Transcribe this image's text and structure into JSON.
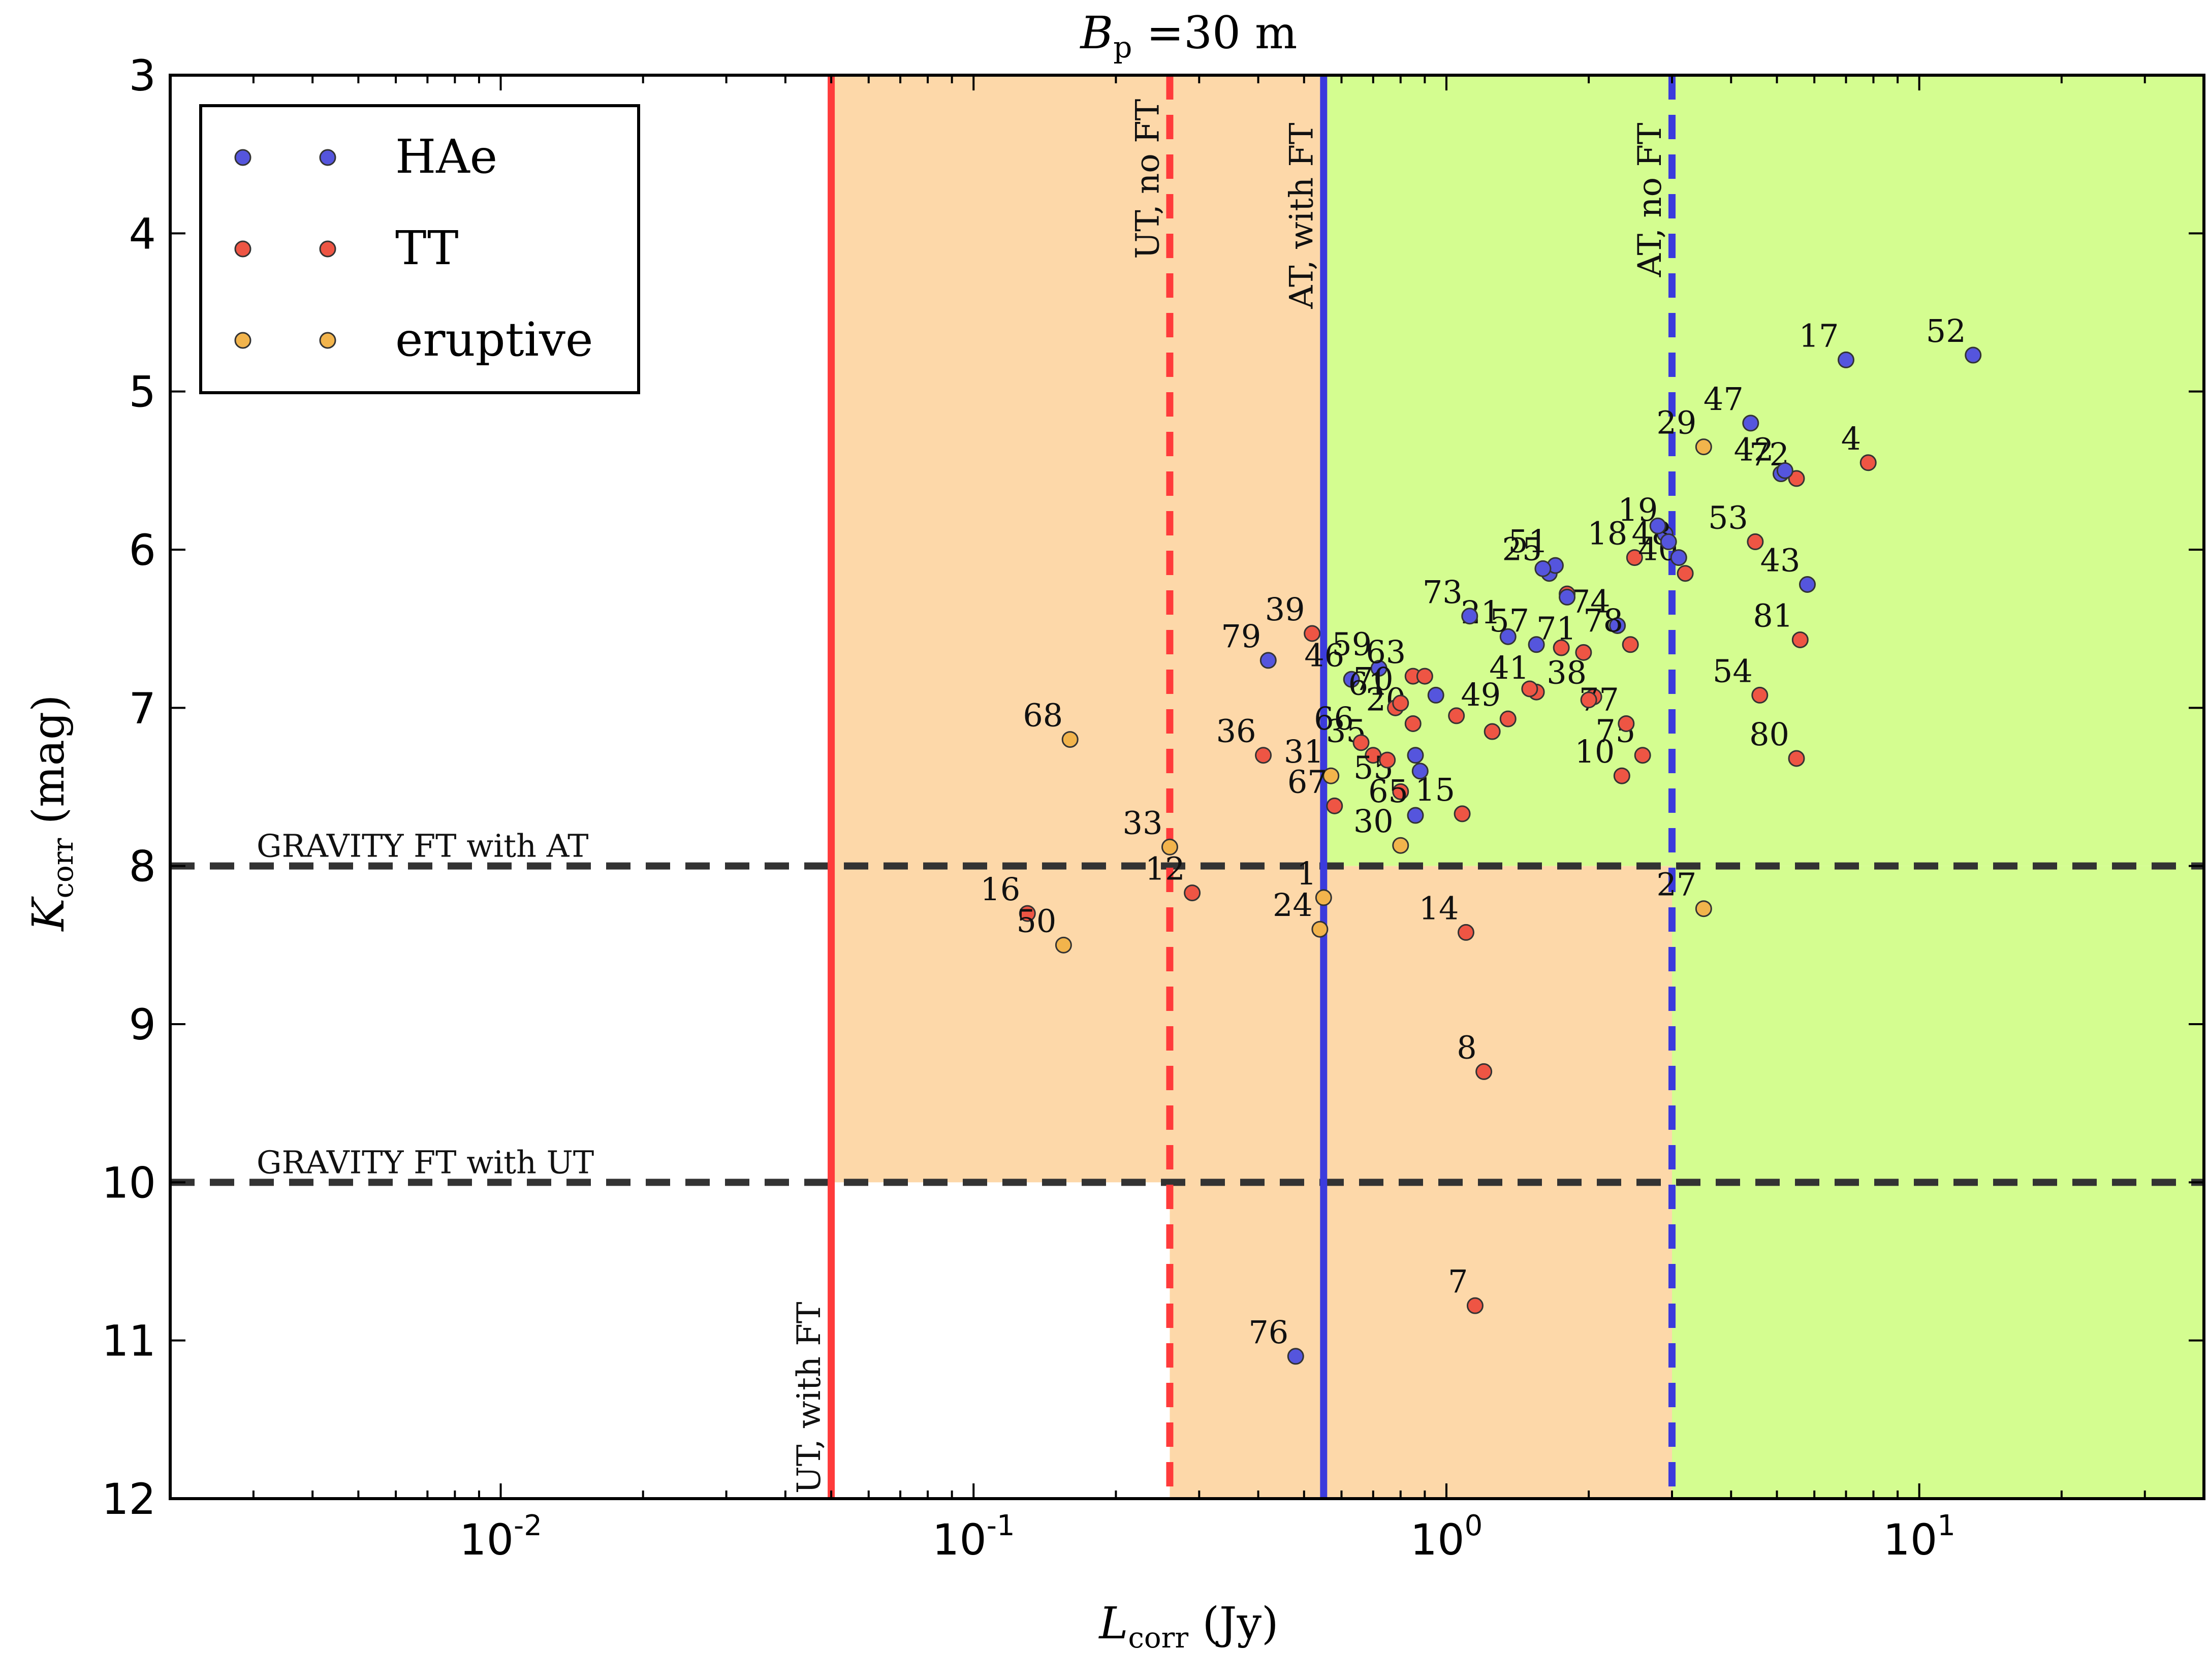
{
  "chart_data": {
    "type": "scatter",
    "title_main": "B",
    "title_sub": "p",
    "title_rest": " =30 m",
    "xlabel_main": "L",
    "xlabel_sub": "corr",
    "xlabel_unit": " (Jy)",
    "ylabel_main": "K",
    "ylabel_sub": "corr",
    "ylabel_unit": " (mag)",
    "x_scale": "log",
    "xlim": [
      0.002,
      40
    ],
    "ylim": [
      12,
      3
    ],
    "y_inverted": true,
    "x_ticks": [
      {
        "base": "10",
        "exp": "-2",
        "value": 0.01
      },
      {
        "base": "10",
        "exp": "-1",
        "value": 0.1
      },
      {
        "base": "10",
        "exp": "0",
        "value": 1
      },
      {
        "base": "10",
        "exp": "1",
        "value": 10
      }
    ],
    "y_ticks": [
      "3",
      "4",
      "5",
      "6",
      "7",
      "8",
      "9",
      "10",
      "11",
      "12"
    ],
    "grid": false,
    "legend": {
      "position": "top-left",
      "entries": [
        {
          "label": "HAe",
          "color": "#5555dd"
        },
        {
          "label": "TT",
          "color": "#ee5544"
        },
        {
          "label": "eruptive",
          "color": "#f2b44c"
        }
      ]
    },
    "regions": [
      {
        "color": "#fdd8a9",
        "x": [
          0.05,
          0.55
        ],
        "y": [
          3,
          10
        ]
      },
      {
        "color": "#fdd8a9",
        "x": [
          0.26,
          3.0
        ],
        "y": [
          8,
          12
        ]
      },
      {
        "color": "#d4fd90",
        "x": [
          0.55,
          40
        ],
        "y": [
          3,
          8
        ]
      },
      {
        "color": "#d4fd90",
        "x": [
          3.0,
          40
        ],
        "y": [
          8,
          12
        ]
      }
    ],
    "vlines": [
      {
        "x": 0.05,
        "style": "solid",
        "color": "#ff3b3b",
        "label": "UT, with FT",
        "label_y": 12
      },
      {
        "x": 0.26,
        "style": "dashed",
        "color": "#ff3b3b",
        "label": "UT, no FT",
        "label_y": 3.15
      },
      {
        "x": 0.55,
        "style": "solid",
        "color": "#3b3bdd",
        "label": "AT, with FT",
        "label_y": 3.3
      },
      {
        "x": 3.0,
        "style": "dashed",
        "color": "#3b3bdd",
        "label": "AT, no FT",
        "label_y": 3.3
      }
    ],
    "hlines": [
      {
        "y": 8,
        "label": "GRAVITY FT with AT",
        "color": "#333333"
      },
      {
        "y": 10,
        "label": "GRAVITY FT with UT",
        "color": "#333333"
      }
    ],
    "series_colors": {
      "HAe": "#5555dd",
      "TT": "#ee5544",
      "eruptive": "#f2b44c"
    },
    "points": [
      {
        "id": "1",
        "group": "eruptive",
        "x": 0.55,
        "y": 8.2
      },
      {
        "id": "4",
        "group": "TT",
        "x": 7.8,
        "y": 5.45
      },
      {
        "id": "7",
        "group": "TT",
        "x": 1.15,
        "y": 10.78
      },
      {
        "id": "8",
        "group": "TT",
        "x": 1.2,
        "y": 9.3
      },
      {
        "id": "10",
        "group": "TT",
        "x": 2.35,
        "y": 7.43
      },
      {
        "id": "12",
        "group": "TT",
        "x": 0.29,
        "y": 8.17
      },
      {
        "id": "14",
        "group": "TT",
        "x": 1.1,
        "y": 8.42
      },
      {
        "id": "15",
        "group": "TT",
        "x": 1.08,
        "y": 7.67
      },
      {
        "id": "16",
        "group": "TT",
        "x": 0.13,
        "y": 8.3
      },
      {
        "id": "17",
        "group": "HAe",
        "x": 7.0,
        "y": 4.8
      },
      {
        "id": "18",
        "group": "TT",
        "x": 2.5,
        "y": 6.05
      },
      {
        "id": "19",
        "group": "HAe",
        "x": 2.9,
        "y": 5.9
      },
      {
        "id": "20",
        "group": "TT",
        "x": 0.85,
        "y": 7.1
      },
      {
        "id": "21",
        "group": "HAe",
        "x": 1.35,
        "y": 6.55
      },
      {
        "id": "24",
        "group": "eruptive",
        "x": 0.54,
        "y": 8.4
      },
      {
        "id": "25",
        "group": "HAe",
        "x": 1.65,
        "y": 6.15
      },
      {
        "id": "27",
        "group": "eruptive",
        "x": 3.5,
        "y": 8.27
      },
      {
        "id": "29",
        "group": "eruptive",
        "x": 3.5,
        "y": 5.35
      },
      {
        "id": "30",
        "group": "eruptive",
        "x": 0.8,
        "y": 7.87
      },
      {
        "id": "31",
        "group": "eruptive",
        "x": 0.57,
        "y": 7.43
      },
      {
        "id": "33",
        "group": "eruptive",
        "x": 0.26,
        "y": 7.88
      },
      {
        "id": "35",
        "group": "TT",
        "x": 0.7,
        "y": 7.3
      },
      {
        "id": "36",
        "group": "TT",
        "x": 0.41,
        "y": 7.3
      },
      {
        "id": "38",
        "group": "TT",
        "x": 2.05,
        "y": 6.93
      },
      {
        "id": "39",
        "group": "TT",
        "x": 0.52,
        "y": 6.53
      },
      {
        "id": "40",
        "group": "TT",
        "x": 3.2,
        "y": 6.15
      },
      {
        "id": "41",
        "group": "TT",
        "x": 1.55,
        "y": 6.9
      },
      {
        "id": "42",
        "group": "HAe",
        "x": 5.1,
        "y": 5.52
      },
      {
        "id": "43",
        "group": "HAe",
        "x": 5.8,
        "y": 6.22
      },
      {
        "id": "46",
        "group": "HAe",
        "x": 0.63,
        "y": 6.82
      },
      {
        "id": "47",
        "group": "HAe",
        "x": 4.4,
        "y": 5.2
      },
      {
        "id": "48",
        "group": "HAe",
        "x": 3.1,
        "y": 6.05
      },
      {
        "id": "49",
        "group": "TT",
        "x": 1.35,
        "y": 7.07
      },
      {
        "id": "50",
        "group": "eruptive",
        "x": 0.155,
        "y": 8.5
      },
      {
        "id": "51",
        "group": "HAe",
        "x": 1.7,
        "y": 6.1
      },
      {
        "id": "52",
        "group": "HAe",
        "x": 13.0,
        "y": 4.77
      },
      {
        "id": "53",
        "group": "TT",
        "x": 4.5,
        "y": 5.95
      },
      {
        "id": "54",
        "group": "TT",
        "x": 4.6,
        "y": 6.92
      },
      {
        "id": "55",
        "group": "TT",
        "x": 0.8,
        "y": 7.53
      },
      {
        "id": "57",
        "group": "HAe",
        "x": 1.55,
        "y": 6.6
      },
      {
        "id": "59",
        "group": "HAe",
        "x": 0.72,
        "y": 6.75
      },
      {
        "id": "61",
        "group": "TT",
        "x": 0.78,
        "y": 7.0
      },
      {
        "id": "63",
        "group": "TT",
        "x": 0.85,
        "y": 6.8
      },
      {
        "id": "65",
        "group": "HAe",
        "x": 0.86,
        "y": 7.68
      },
      {
        "id": "66",
        "group": "TT",
        "x": 0.66,
        "y": 7.22
      },
      {
        "id": "67",
        "group": "TT",
        "x": 0.58,
        "y": 7.62
      },
      {
        "id": "68",
        "group": "eruptive",
        "x": 0.16,
        "y": 7.2
      },
      {
        "id": "70",
        "group": "TT",
        "x": 0.8,
        "y": 6.97
      },
      {
        "id": "71",
        "group": "TT",
        "x": 1.95,
        "y": 6.65
      },
      {
        "id": "72",
        "group": "TT",
        "x": 5.5,
        "y": 5.55
      },
      {
        "id": "73",
        "group": "HAe",
        "x": 1.12,
        "y": 6.42
      },
      {
        "id": "74",
        "group": "HAe",
        "x": 2.3,
        "y": 6.48
      },
      {
        "id": "75",
        "group": "TT",
        "x": 2.6,
        "y": 7.3
      },
      {
        "id": "76",
        "group": "HAe",
        "x": 0.48,
        "y": 11.1
      },
      {
        "id": "77",
        "group": "TT",
        "x": 2.4,
        "y": 7.1
      },
      {
        "id": "78",
        "group": "TT",
        "x": 2.45,
        "y": 6.6
      },
      {
        "id": "79",
        "group": "HAe",
        "x": 0.42,
        "y": 6.7
      },
      {
        "id": "80",
        "group": "TT",
        "x": 5.5,
        "y": 7.32
      },
      {
        "id": "81",
        "group": "TT",
        "x": 5.6,
        "y": 6.57
      },
      {
        "id": "2",
        "group": "HAe",
        "x": 2.8,
        "y": 5.85
      },
      {
        "id": "3",
        "group": "HAe",
        "x": 0.86,
        "y": 7.3
      },
      {
        "id": "5",
        "group": "TT",
        "x": 1.25,
        "y": 7.15
      },
      {
        "id": "6",
        "group": "HAe",
        "x": 0.95,
        "y": 6.92
      },
      {
        "id": "9",
        "group": "TT",
        "x": 1.8,
        "y": 6.28
      },
      {
        "id": "11",
        "group": "HAe",
        "x": 5.2,
        "y": 5.5
      },
      {
        "id": "13",
        "group": "TT",
        "x": 1.5,
        "y": 6.88
      },
      {
        "id": "22",
        "group": "TT",
        "x": 1.75,
        "y": 6.62
      },
      {
        "id": "23",
        "group": "HAe",
        "x": 1.8,
        "y": 6.3
      },
      {
        "id": "26",
        "group": "HAe",
        "x": 0.88,
        "y": 7.4
      },
      {
        "id": "28",
        "group": "HAe",
        "x": 2.95,
        "y": 5.95
      },
      {
        "id": "32",
        "group": "TT",
        "x": 1.05,
        "y": 7.05
      },
      {
        "id": "34",
        "group": "TT",
        "x": 0.75,
        "y": 7.33
      },
      {
        "id": "37",
        "group": "TT",
        "x": 2.0,
        "y": 6.95
      },
      {
        "id": "44",
        "group": "HAe",
        "x": 1.6,
        "y": 6.12
      },
      {
        "id": "45",
        "group": "TT",
        "x": 0.9,
        "y": 6.8
      }
    ]
  },
  "point_labels_visible": [
    "1",
    "4",
    "7",
    "8",
    "10",
    "12",
    "14",
    "15",
    "16",
    "17",
    "18",
    "19",
    "20",
    "21",
    "24",
    "25",
    "27",
    "29",
    "30",
    "31",
    "33",
    "35",
    "36",
    "38",
    "39",
    "40",
    "41",
    "42",
    "43",
    "46",
    "47",
    "48",
    "49",
    "50",
    "51",
    "52",
    "53",
    "54",
    "55",
    "57",
    "59",
    "61",
    "63",
    "65",
    "66",
    "67",
    "68",
    "70",
    "71",
    "72",
    "73",
    "74",
    "75",
    "76",
    "77",
    "78",
    "79",
    "80",
    "81"
  ]
}
